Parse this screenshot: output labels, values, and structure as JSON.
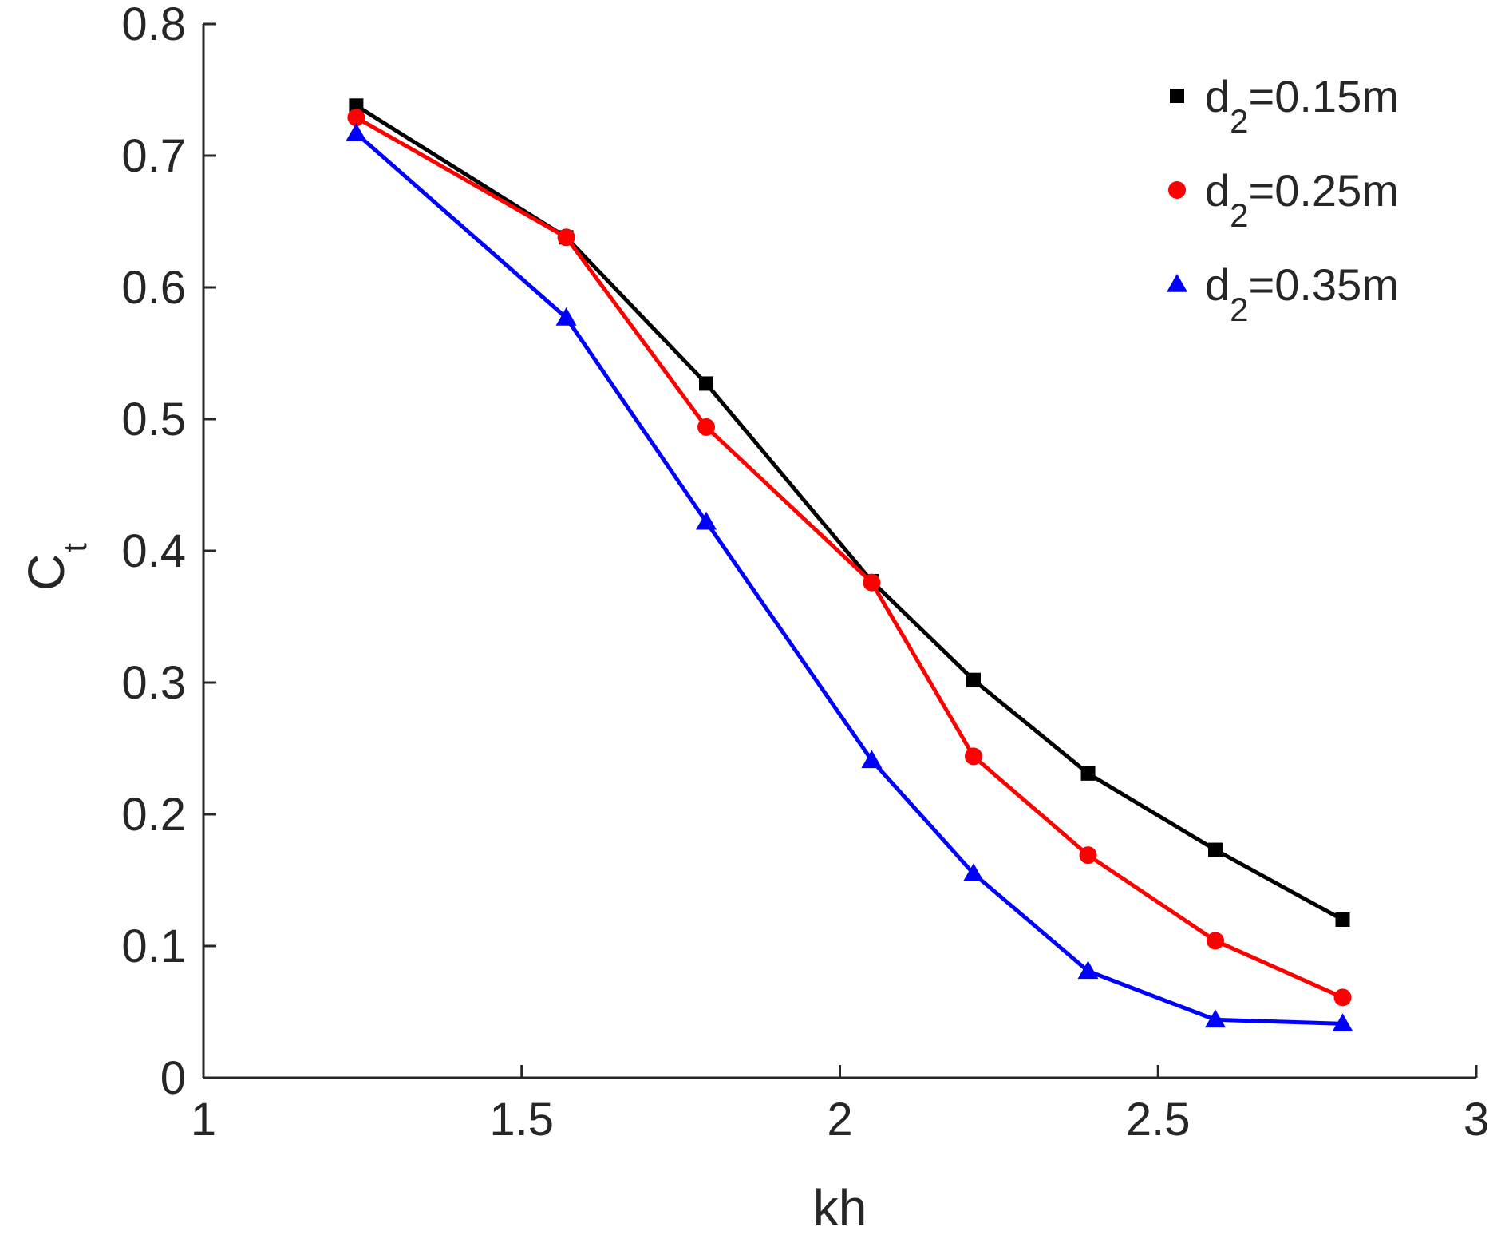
{
  "chart_data": {
    "type": "line",
    "xlabel": "kh",
    "ylabel": {
      "main": "C",
      "sub": "t"
    },
    "xlim": [
      1,
      3
    ],
    "ylim": [
      0,
      0.8
    ],
    "x_ticks": [
      "1",
      "1.5",
      "2",
      "2.5",
      "3"
    ],
    "y_ticks": [
      "0",
      "0.1",
      "0.2",
      "0.3",
      "0.4",
      "0.5",
      "0.6",
      "0.7",
      "0.8"
    ],
    "grid": false,
    "legend_position": "top-right",
    "x": [
      1.24,
      1.57,
      1.79,
      2.05,
      2.21,
      2.39,
      2.59,
      2.79
    ],
    "series": [
      {
        "name": {
          "pre": "d",
          "sub": "2",
          "post": "=0.15m"
        },
        "color": "#000000",
        "marker": "square",
        "values": [
          0.738,
          0.638,
          0.527,
          0.377,
          0.302,
          0.231,
          0.173,
          0.12
        ]
      },
      {
        "name": {
          "pre": "d",
          "sub": "2",
          "post": "=0.25m"
        },
        "color": "#ff0000",
        "marker": "circle",
        "values": [
          0.729,
          0.638,
          0.494,
          0.376,
          0.244,
          0.169,
          0.104,
          0.061
        ]
      },
      {
        "name": {
          "pre": "d",
          "sub": "2",
          "post": "=0.35m"
        },
        "color": "#0000ff",
        "marker": "triangle",
        "values": [
          0.717,
          0.577,
          0.422,
          0.241,
          0.155,
          0.081,
          0.044,
          0.041
        ]
      }
    ]
  }
}
